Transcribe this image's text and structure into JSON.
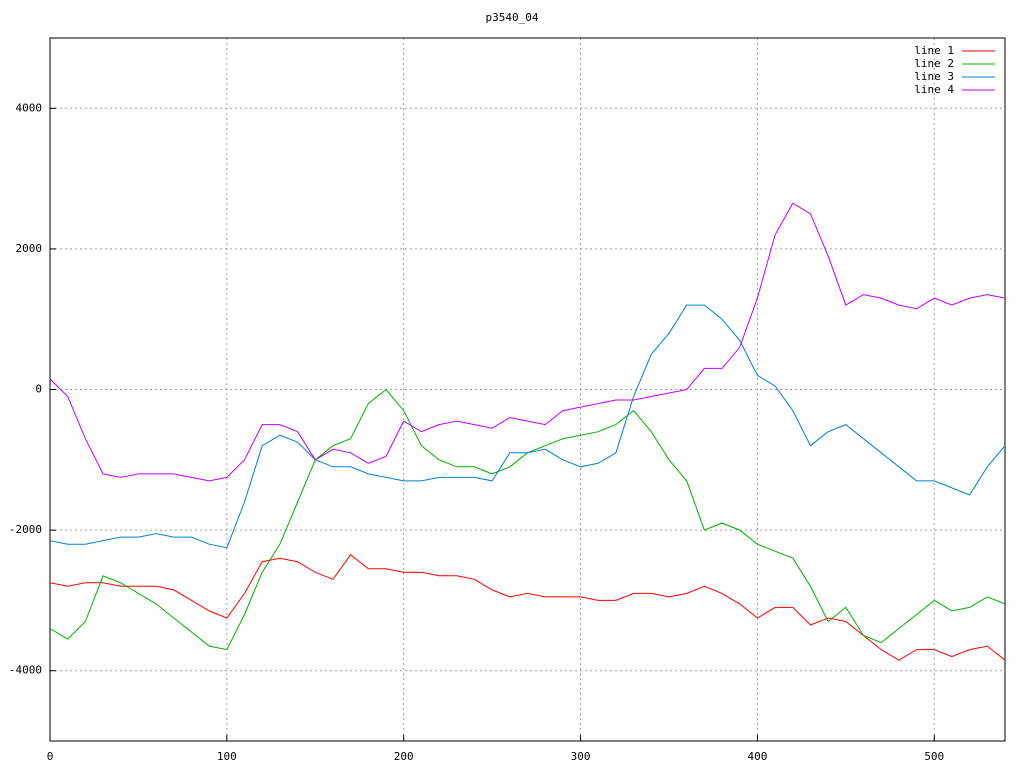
{
  "chart_data": {
    "type": "line",
    "title": "p3540_04",
    "x": [
      0,
      10,
      20,
      30,
      40,
      50,
      60,
      70,
      80,
      90,
      100,
      110,
      120,
      130,
      140,
      150,
      160,
      170,
      180,
      190,
      200,
      210,
      220,
      230,
      240,
      250,
      260,
      270,
      280,
      290,
      300,
      310,
      320,
      330,
      340,
      350,
      360,
      370,
      380,
      390,
      400,
      410,
      420,
      430,
      440,
      450,
      460,
      470,
      480,
      490,
      500,
      510,
      520,
      530,
      540
    ],
    "series": [
      {
        "name": "line 1",
        "color": "#ff0000",
        "values": [
          -2750,
          -2800,
          -2750,
          -2750,
          -2800,
          -2800,
          -2800,
          -2850,
          -3000,
          -3150,
          -3250,
          -2900,
          -2450,
          -2400,
          -2450,
          -2600,
          -2700,
          -2350,
          -2550,
          -2550,
          -2600,
          -2600,
          -2650,
          -2650,
          -2700,
          -2850,
          -2950,
          -2900,
          -2950,
          -2950,
          -2950,
          -3000,
          -3000,
          -2900,
          -2900,
          -2950,
          -2900,
          -2800,
          -2900,
          -3050,
          -3250,
          -3100,
          -3100,
          -3350,
          -3250,
          -3300,
          -3500,
          -3700,
          -3850,
          -3700,
          -3700,
          -3800,
          -3700,
          -3650,
          -3850
        ]
      },
      {
        "name": "line 2",
        "color": "#00b000",
        "values": [
          -3400,
          -3550,
          -3300,
          -2650,
          -2750,
          -2900,
          -3050,
          -3250,
          -3450,
          -3650,
          -3700,
          -3200,
          -2600,
          -2200,
          -1600,
          -1000,
          -800,
          -700,
          -200,
          0,
          -300,
          -800,
          -1000,
          -1100,
          -1100,
          -1200,
          -1100,
          -900,
          -800,
          -700,
          -650,
          -600,
          -500,
          -300,
          -600,
          -1000,
          -1300,
          -2000,
          -1900,
          -2000,
          -2200,
          -2300,
          -2400,
          -2800,
          -3300,
          -3100,
          -3500,
          -3600,
          -3400,
          -3200,
          -3000,
          -3150,
          -3100,
          -2950,
          -3050
        ]
      },
      {
        "name": "line 3",
        "color": "#0080d0",
        "values": [
          -2150,
          -2200,
          -2200,
          -2150,
          -2100,
          -2100,
          -2050,
          -2100,
          -2100,
          -2200,
          -2250,
          -1600,
          -800,
          -650,
          -750,
          -1000,
          -1100,
          -1100,
          -1200,
          -1250,
          -1300,
          -1300,
          -1250,
          -1250,
          -1250,
          -1300,
          -900,
          -900,
          -850,
          -1000,
          -1100,
          -1050,
          -900,
          -100,
          500,
          800,
          1200,
          1200,
          1000,
          700,
          200,
          50,
          -300,
          -800,
          -600,
          -500,
          -700,
          -900,
          -1100,
          -1300,
          -1300,
          -1400,
          -1500,
          -1100,
          -800
        ]
      },
      {
        "name": "line 4",
        "color": "#c000ff",
        "values": [
          150,
          -100,
          -700,
          -1200,
          -1250,
          -1200,
          -1200,
          -1200,
          -1250,
          -1300,
          -1250,
          -1000,
          -500,
          -500,
          -600,
          -1000,
          -850,
          -900,
          -1050,
          -950,
          -450,
          -600,
          -500,
          -450,
          -500,
          -550,
          -400,
          -450,
          -500,
          -300,
          -250,
          -200,
          -150,
          -150,
          -100,
          -50,
          0,
          300,
          300,
          600,
          1300,
          2200,
          2650,
          2500,
          1900,
          1200,
          1350,
          1300,
          1200,
          1150,
          1300,
          1200,
          1300,
          1350,
          1300
        ]
      }
    ],
    "xlim": [
      0,
      540
    ],
    "ylim": [
      -5000,
      5000
    ],
    "xticks": [
      0,
      100,
      200,
      300,
      400,
      500
    ],
    "yticks": [
      -4000,
      -2000,
      0,
      2000,
      4000
    ],
    "grid": true,
    "legend": "top-right"
  }
}
